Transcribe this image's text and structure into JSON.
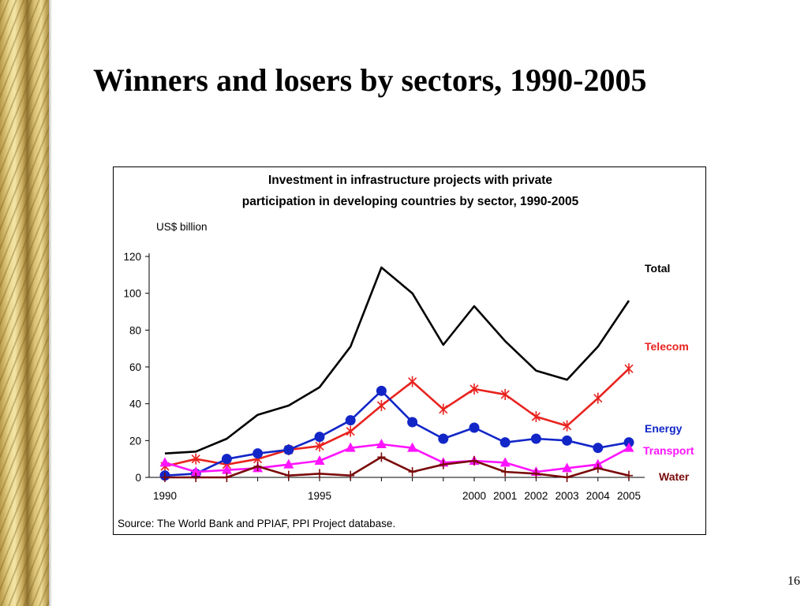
{
  "slide": {
    "title": "Winners and losers by sectors, 1990-2005",
    "page_number": "16"
  },
  "chart_data": {
    "type": "line",
    "title_line1": "Investment in infrastructure projects with private",
    "title_line2": "participation in developing countries by sector, 1990-2005",
    "ylabel": "US$ billion",
    "source": "Source: The World Bank and PPIAF, PPI Project database.",
    "ylim": [
      0,
      120
    ],
    "y_ticks": [
      0,
      20,
      40,
      60,
      80,
      100,
      120
    ],
    "x": [
      1990,
      1991,
      1992,
      1993,
      1994,
      1995,
      1996,
      1997,
      1998,
      1999,
      2000,
      2001,
      2002,
      2003,
      2004,
      2005
    ],
    "x_tick_labels": [
      "1990",
      "",
      "",
      "",
      "",
      "1995",
      "",
      "",
      "",
      "",
      "2000",
      "2001",
      "2002",
      "2003",
      "2004",
      "2005"
    ],
    "grid": false,
    "legend": "inline labels at right end of lines",
    "series": [
      {
        "name": "Total",
        "color": "#000000",
        "marker": "none",
        "values": [
          13,
          14,
          21,
          34,
          39,
          49,
          71,
          114,
          100,
          72,
          93,
          74,
          58,
          53,
          71,
          96
        ]
      },
      {
        "name": "Telecom",
        "color": "#e8231f",
        "marker": "star",
        "values": [
          6,
          10,
          7,
          10,
          15,
          17,
          25,
          39,
          52,
          37,
          48,
          45,
          33,
          28,
          43,
          59
        ]
      },
      {
        "name": "Energy",
        "color": "#1226c8",
        "marker": "circle",
        "values": [
          1,
          2,
          10,
          13,
          15,
          22,
          31,
          47,
          30,
          21,
          27,
          19,
          21,
          20,
          16,
          19
        ]
      },
      {
        "name": "Transport",
        "color": "#ff14ff",
        "marker": "triangle",
        "values": [
          8,
          3,
          4,
          5,
          7,
          9,
          16,
          18,
          16,
          8,
          9,
          8,
          3,
          5,
          7,
          16
        ]
      },
      {
        "name": "Water",
        "color": "#7a0a0a",
        "marker": "plus",
        "values": [
          0,
          0,
          0,
          6,
          1,
          2,
          1,
          11,
          3,
          7,
          9,
          3,
          2,
          0,
          5,
          1
        ]
      }
    ]
  }
}
